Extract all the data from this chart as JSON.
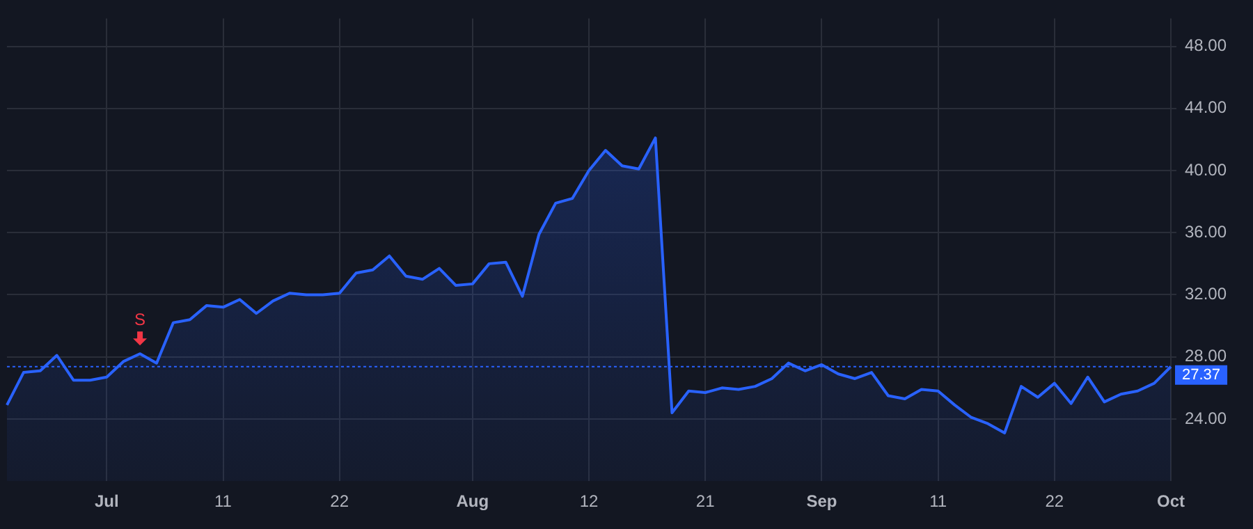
{
  "chart_data": {
    "type": "area",
    "categories": [
      null,
      null,
      null,
      null,
      null,
      null,
      "Jul",
      null,
      null,
      null,
      null,
      null,
      null,
      "11",
      null,
      null,
      null,
      null,
      null,
      null,
      "22",
      null,
      null,
      null,
      null,
      null,
      null,
      null,
      "Aug",
      null,
      null,
      null,
      null,
      null,
      null,
      "12",
      null,
      null,
      null,
      null,
      null,
      null,
      "21",
      null,
      null,
      null,
      null,
      null,
      null,
      "Sep",
      null,
      null,
      null,
      null,
      null,
      null,
      "11",
      null,
      null,
      null,
      null,
      null,
      null,
      "22",
      null,
      null,
      null,
      null,
      null,
      null,
      "Oct"
    ],
    "series": [
      {
        "color": "#2962ff",
        "values": [
          24.9,
          27.0,
          27.1,
          28.1,
          26.5,
          26.5,
          26.7,
          27.7,
          28.2,
          27.6,
          30.2,
          30.4,
          31.3,
          31.2,
          31.7,
          30.8,
          31.6,
          32.1,
          32.0,
          32.0,
          32.1,
          33.4,
          33.6,
          34.5,
          33.2,
          33.0,
          33.7,
          32.6,
          32.7,
          34.0,
          34.1,
          31.9,
          35.9,
          37.9,
          38.2,
          40.0,
          41.3,
          40.3,
          40.1,
          42.1,
          24.4,
          25.8,
          25.7,
          26.0,
          25.9,
          26.1,
          26.6,
          27.6,
          27.1,
          27.5,
          26.9,
          26.6,
          27.0,
          25.5,
          25.3,
          25.9,
          25.8,
          24.9,
          24.1,
          23.7,
          23.1,
          26.1,
          25.4,
          26.3,
          25.0,
          26.7,
          25.1,
          25.6,
          25.8,
          26.3,
          27.37
        ]
      }
    ],
    "ylim": [
      20.0,
      49.8
    ],
    "yticks": [
      {
        "value": 24,
        "label": "24.00"
      },
      {
        "value": 28,
        "label": "28.00"
      },
      {
        "value": 32,
        "label": "32.00"
      },
      {
        "value": 36,
        "label": "36.00"
      },
      {
        "value": 40,
        "label": "40.00"
      },
      {
        "value": 44,
        "label": "44.00"
      },
      {
        "value": 48,
        "label": "48.00"
      }
    ],
    "ref_lines": [
      {
        "axis": "y",
        "value": 27.37,
        "label": "27.37",
        "color": "#2962ff",
        "line_style": "dotted"
      }
    ],
    "annotations": [
      {
        "text": "S",
        "y": 28.2
      }
    ],
    "grid": true,
    "legend": false,
    "marker": "none",
    "line_style": "solid"
  }
}
